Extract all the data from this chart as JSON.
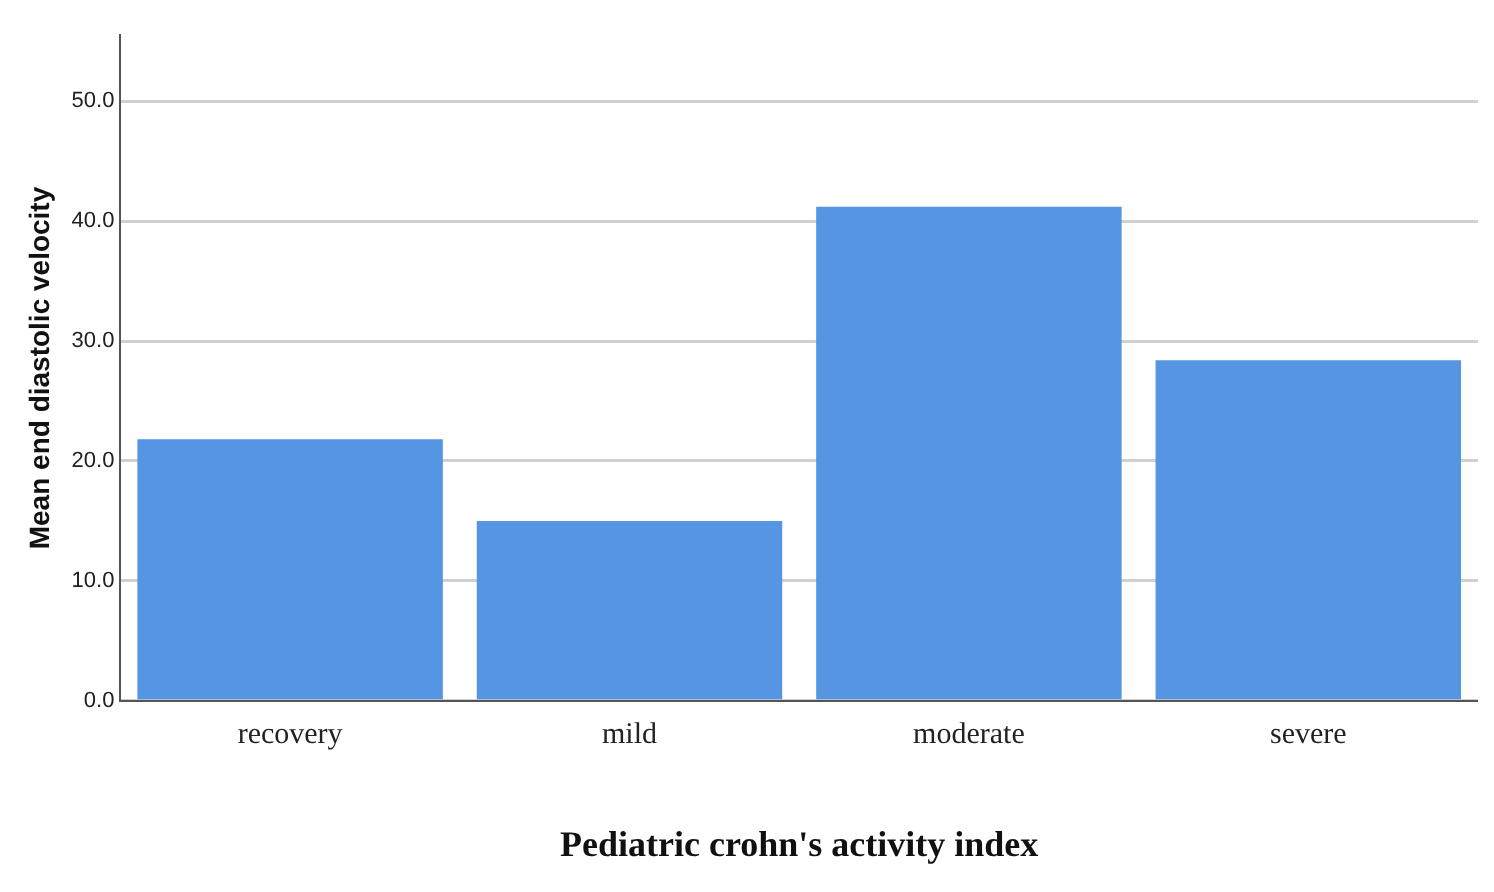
{
  "chart_data": {
    "type": "bar",
    "xlabel": "Pediatric crohn's activity index",
    "ylabel": "Mean end diastolic velocity",
    "categories": [
      "recovery",
      "mild",
      "moderate",
      "severe"
    ],
    "values": [
      21.8,
      15.0,
      41.2,
      28.4
    ],
    "color": "#5595e2",
    "ylim": [
      0,
      55.5
    ],
    "yticks": [
      {
        "value": 0,
        "label": "0.0"
      },
      {
        "value": 10,
        "label": "10.0"
      },
      {
        "value": 20,
        "label": "20.0"
      },
      {
        "value": 30,
        "label": "30.0"
      },
      {
        "value": 40,
        "label": "40.0"
      },
      {
        "value": 50,
        "label": "50.0"
      }
    ],
    "grid": "y",
    "legend": false
  }
}
